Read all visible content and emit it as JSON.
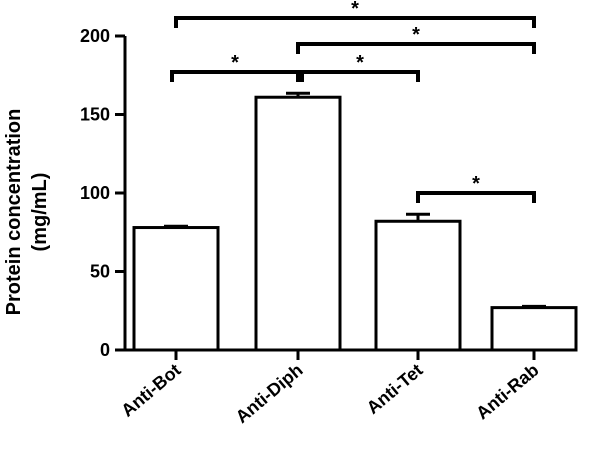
{
  "chart_data": {
    "type": "bar",
    "categories": [
      "Anti-Bot",
      "Anti-Diph",
      "Anti-Tet",
      "Anti-Rab"
    ],
    "values": [
      78,
      161,
      82,
      27
    ],
    "errors": [
      0.8,
      2.5,
      4.5,
      0.8
    ],
    "ylabel_line1": "Protein concentration",
    "ylabel_line2": "(mg/mL)",
    "ylim": [
      0,
      200
    ],
    "yticks": [
      0,
      50,
      100,
      150,
      200
    ],
    "bar_fill": "#ffffff",
    "bar_stroke": "#000000",
    "significance": [
      {
        "from": 0,
        "to": 3,
        "label": "*"
      },
      {
        "from": 1,
        "to": 3,
        "label": "*"
      },
      {
        "from": 0,
        "to": 1,
        "label": "*"
      },
      {
        "from": 1,
        "to": 2,
        "label": "*"
      },
      {
        "from": 2,
        "to": 3,
        "label": "*"
      }
    ]
  }
}
